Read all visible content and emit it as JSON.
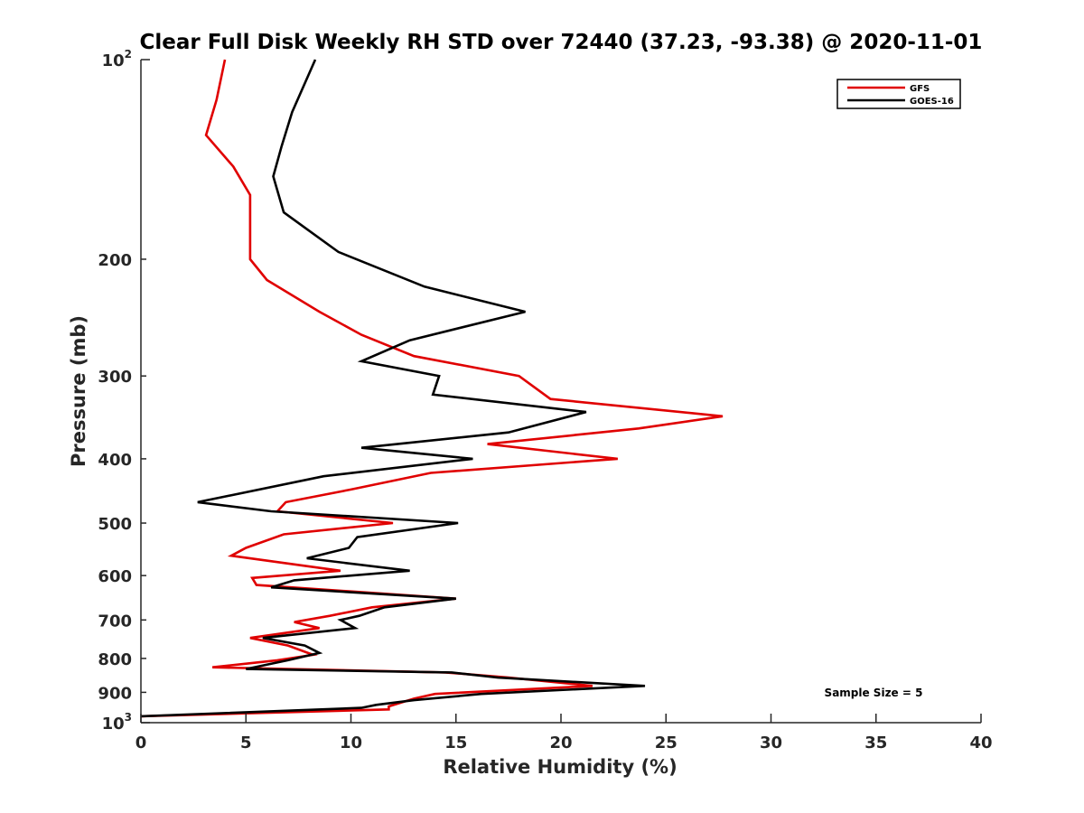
{
  "chart_data": {
    "type": "line",
    "title": "Clear Full Disk Weekly RH STD over 72440 (37.23, -93.38) @ 2020-11-01",
    "xlabel": "Relative Humidity (%)",
    "ylabel": "Pressure (mb)",
    "xlim": [
      0,
      40
    ],
    "ylim": [
      100,
      1000
    ],
    "yscale": "log",
    "y_reversed": true,
    "grid": false,
    "legend_position": "top-right",
    "x_ticks": [
      0,
      5,
      10,
      15,
      20,
      25,
      30,
      35,
      40
    ],
    "x_tick_labels": [
      "0",
      "5",
      "10",
      "15",
      "20",
      "25",
      "30",
      "35",
      "40"
    ],
    "y_ticks": [
      100,
      200,
      300,
      400,
      500,
      600,
      700,
      800,
      900,
      1000
    ],
    "y_tick_labels": [
      {
        "base": "10",
        "exp": "2"
      },
      {
        "base": "200"
      },
      {
        "base": "300"
      },
      {
        "base": "400"
      },
      {
        "base": "500"
      },
      {
        "base": "600"
      },
      {
        "base": "700"
      },
      {
        "base": "800"
      },
      {
        "base": "900"
      },
      {
        "base": "10",
        "exp": "3"
      }
    ],
    "annotation": "Sample Size = 5",
    "series": [
      {
        "name": "GFS",
        "color": "#e00000",
        "points": [
          [
            4.0,
            100
          ],
          [
            3.6,
            115
          ],
          [
            3.1,
            130
          ],
          [
            4.4,
            145
          ],
          [
            5.2,
            160
          ],
          [
            5.2,
            180
          ],
          [
            5.2,
            200
          ],
          [
            6.0,
            215
          ],
          [
            8.5,
            240
          ],
          [
            10.5,
            260
          ],
          [
            13.0,
            280
          ],
          [
            18.0,
            300
          ],
          [
            19.5,
            325
          ],
          [
            27.7,
            345
          ],
          [
            23.7,
            360
          ],
          [
            16.5,
            380
          ],
          [
            22.7,
            400
          ],
          [
            13.8,
            420
          ],
          [
            10.0,
            445
          ],
          [
            6.9,
            465
          ],
          [
            6.5,
            480
          ],
          [
            12.0,
            500
          ],
          [
            6.8,
            520
          ],
          [
            5.0,
            545
          ],
          [
            4.3,
            560
          ],
          [
            9.5,
            590
          ],
          [
            5.3,
            605
          ],
          [
            5.5,
            620
          ],
          [
            15.0,
            650
          ],
          [
            11.0,
            670
          ],
          [
            9.0,
            690
          ],
          [
            7.3,
            705
          ],
          [
            8.5,
            720
          ],
          [
            5.2,
            745
          ],
          [
            7.0,
            765
          ],
          [
            8.2,
            790
          ],
          [
            6.5,
            805
          ],
          [
            3.4,
            825
          ],
          [
            14.5,
            840
          ],
          [
            17.5,
            855
          ],
          [
            21.5,
            880
          ],
          [
            14.0,
            905
          ],
          [
            13.0,
            920
          ],
          [
            11.8,
            945
          ],
          [
            11.8,
            955
          ],
          [
            0.0,
            978
          ]
        ]
      },
      {
        "name": "GOES-16",
        "color": "#000000",
        "points": [
          [
            8.3,
            100
          ],
          [
            7.2,
            120
          ],
          [
            6.7,
            135
          ],
          [
            6.3,
            150
          ],
          [
            6.8,
            170
          ],
          [
            9.4,
            195
          ],
          [
            13.5,
            220
          ],
          [
            18.3,
            240
          ],
          [
            12.8,
            265
          ],
          [
            10.5,
            285
          ],
          [
            14.2,
            300
          ],
          [
            13.9,
            320
          ],
          [
            21.2,
            340
          ],
          [
            17.5,
            365
          ],
          [
            10.5,
            385
          ],
          [
            15.8,
            400
          ],
          [
            8.7,
            425
          ],
          [
            2.7,
            465
          ],
          [
            6.2,
            480
          ],
          [
            15.1,
            500
          ],
          [
            10.3,
            525
          ],
          [
            9.9,
            545
          ],
          [
            7.9,
            565
          ],
          [
            12.8,
            590
          ],
          [
            7.3,
            610
          ],
          [
            6.2,
            625
          ],
          [
            15.0,
            650
          ],
          [
            11.6,
            670
          ],
          [
            10.4,
            690
          ],
          [
            9.5,
            700
          ],
          [
            10.2,
            720
          ],
          [
            5.8,
            745
          ],
          [
            7.8,
            765
          ],
          [
            8.5,
            785
          ],
          [
            7.0,
            805
          ],
          [
            5.0,
            830
          ],
          [
            14.8,
            840
          ],
          [
            17.0,
            855
          ],
          [
            24.0,
            880
          ],
          [
            16.2,
            905
          ],
          [
            13.0,
            925
          ],
          [
            11.2,
            940
          ],
          [
            10.5,
            950
          ],
          [
            0.0,
            978
          ]
        ]
      }
    ]
  }
}
